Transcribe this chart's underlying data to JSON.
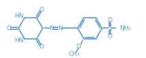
{
  "bg_color": "#ffffff",
  "line_color": "#5b9bd5",
  "text_color": "#5b9bd5",
  "line_width": 1.2,
  "font_size": 6.5
}
